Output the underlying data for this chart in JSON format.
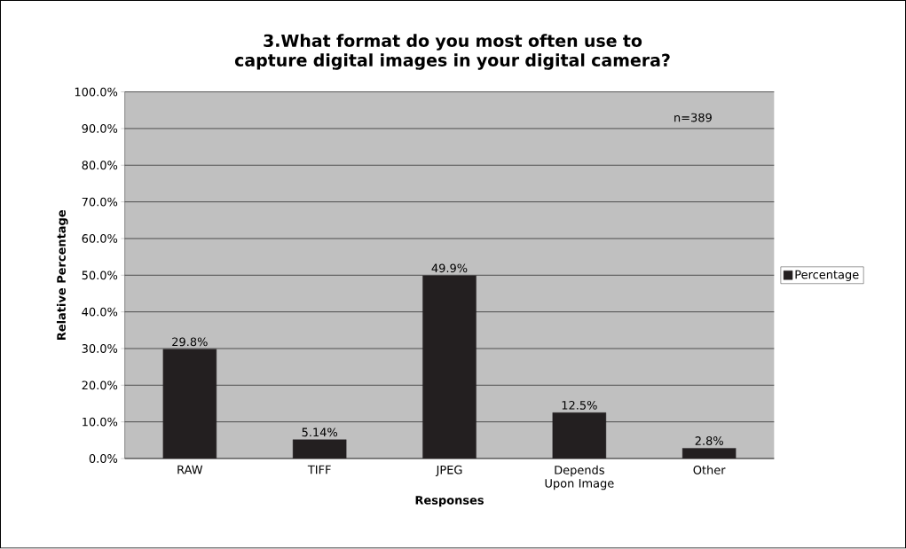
{
  "chart_data": {
    "type": "bar",
    "title": "3.What format do you most often use to capture digital images in your digital camera?",
    "xlabel": "Responses",
    "ylabel": "Relative Percentage",
    "categories": [
      "RAW",
      "TIFF",
      "JPEG",
      "Depends Upon Image",
      "Other"
    ],
    "series": [
      {
        "name": "Percentage",
        "color": "#231f20",
        "values": [
          29.8,
          5.14,
          49.9,
          12.5,
          2.8
        ],
        "value_labels": [
          "29.8%",
          "5.14%",
          "49.9%",
          "12.5%",
          "2.8%"
        ]
      }
    ],
    "ylim": [
      0,
      100
    ],
    "yticks": [
      {
        "value": 0,
        "label": "0.0%"
      },
      {
        "value": 10,
        "label": "10.0%"
      },
      {
        "value": 20,
        "label": "20.0%"
      },
      {
        "value": 30,
        "label": "30.0%"
      },
      {
        "value": 40,
        "label": "40.0%"
      },
      {
        "value": 50,
        "label": "50.0%"
      },
      {
        "value": 60,
        "label": "60.0%"
      },
      {
        "value": 70,
        "label": "70.0%"
      },
      {
        "value": 80,
        "label": "80.0%"
      },
      {
        "value": 90,
        "label": "90.0%"
      },
      {
        "value": 100,
        "label": "100.0%"
      }
    ],
    "grid": "y",
    "legend": "right",
    "annotations": [
      "n=389"
    ]
  }
}
